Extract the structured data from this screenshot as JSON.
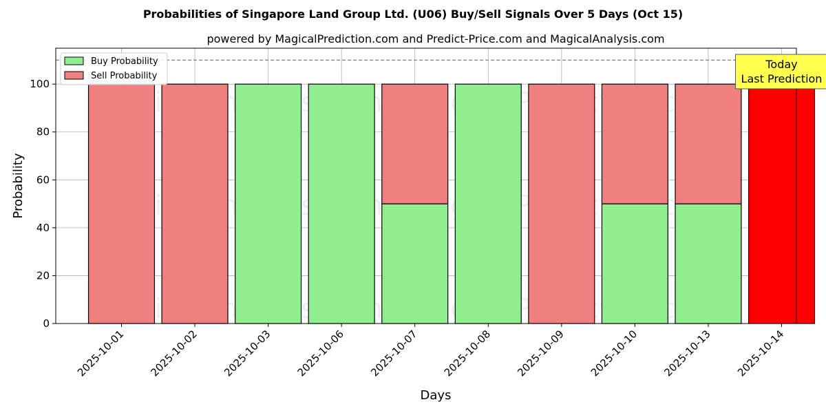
{
  "chart_data": {
    "type": "bar",
    "title": "Probabilities of Singapore Land Group Ltd. (U06) Buy/Sell Signals Over 5 Days (Oct 15)",
    "subtitle": "powered by MagicalPrediction.com and Predict-Price.com and MagicalAnalysis.com",
    "xlabel": "Days",
    "ylabel": "Probability",
    "ylim": [
      0,
      115
    ],
    "yticks": [
      0,
      20,
      40,
      60,
      80,
      100
    ],
    "reference_line": 110,
    "grid": true,
    "legend_position": "top-left",
    "categories": [
      "2025-10-01",
      "2025-10-02",
      "2025-10-03",
      "2025-10-06",
      "2025-10-07",
      "2025-10-08",
      "2025-10-09",
      "2025-10-10",
      "2025-10-13",
      "2025-10-14"
    ],
    "series": [
      {
        "name": "Buy Probability",
        "color": "#90ee90",
        "values": [
          0,
          0,
          100,
          100,
          50,
          100,
          0,
          50,
          50,
          0
        ]
      },
      {
        "name": "Sell Probability",
        "color": "#f08080",
        "values": [
          100,
          100,
          0,
          0,
          50,
          0,
          100,
          50,
          50,
          100
        ]
      }
    ],
    "highlight": {
      "index": 9,
      "color": "#ff0000"
    },
    "annotation": {
      "lines": [
        "Today",
        "Last Prediction"
      ],
      "background": "#ffff4d"
    },
    "watermarks": [
      "MagicalAnalysis.com",
      "MagicalPrediction.com"
    ]
  }
}
